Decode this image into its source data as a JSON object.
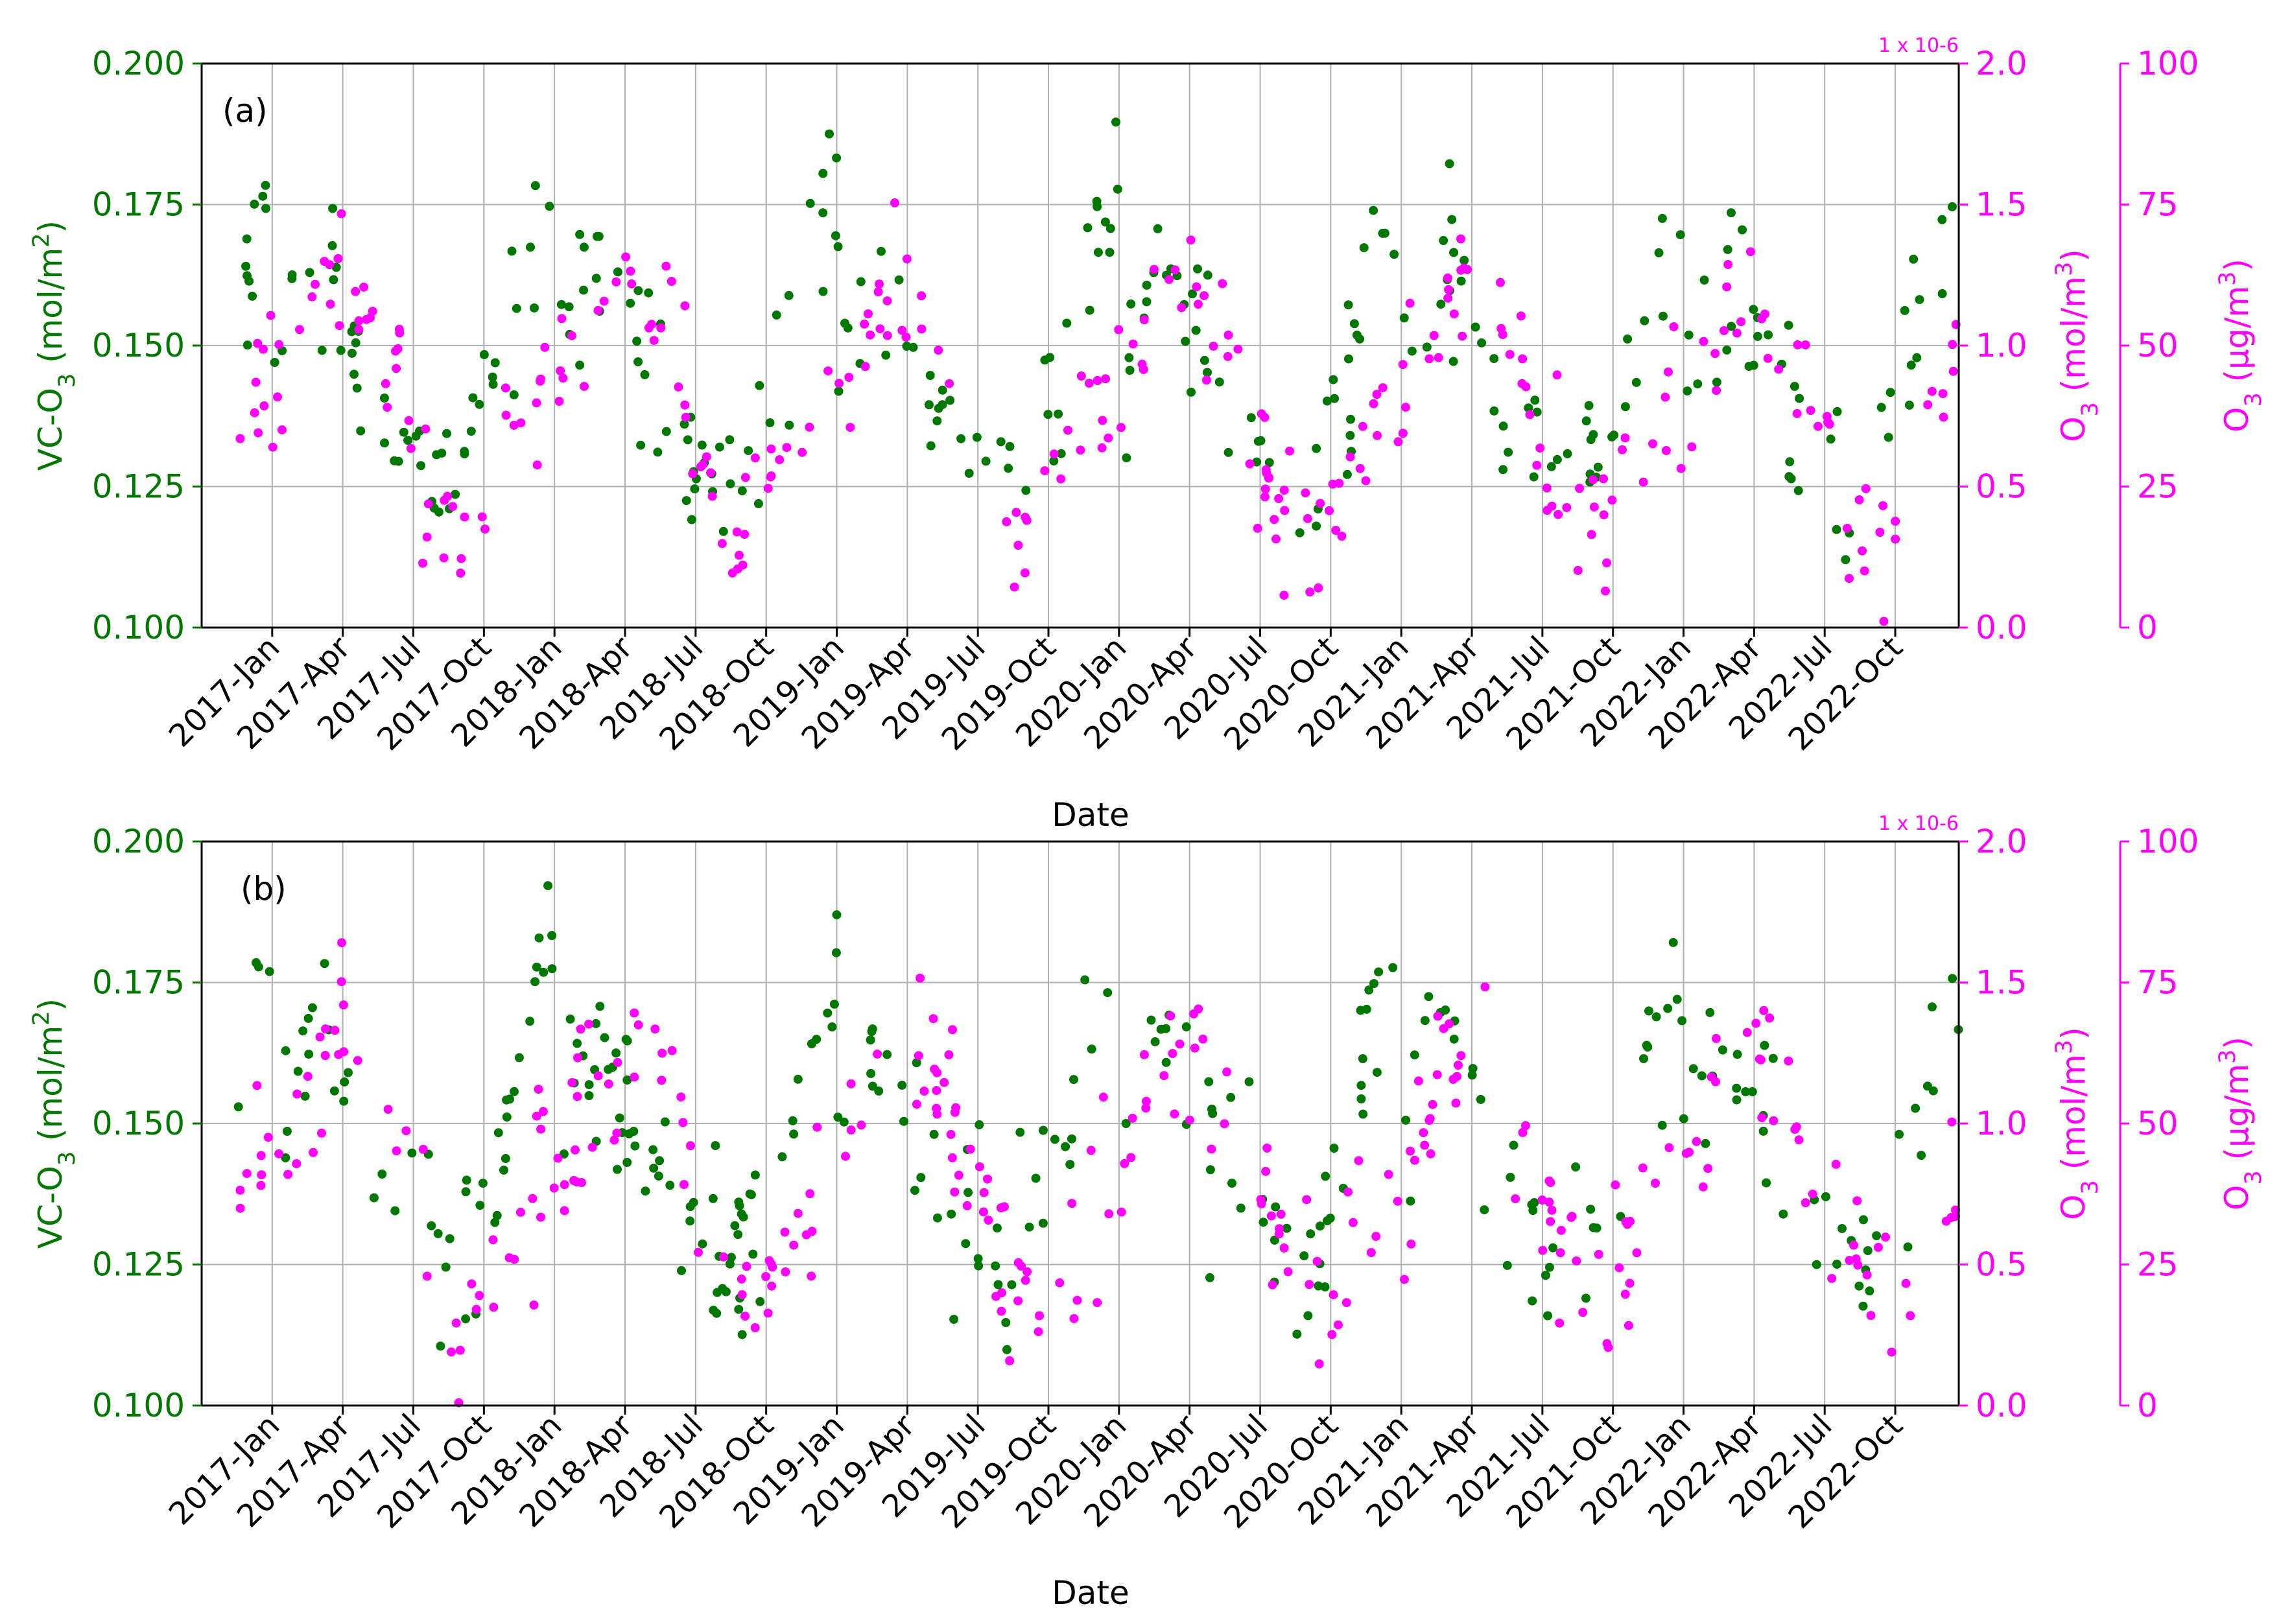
{
  "colors": {
    "green": "#007800",
    "magenta": "#ff00ff",
    "grid": "#b0b0b0",
    "axis": "#000000"
  },
  "chart_data": [
    {
      "type": "scatter",
      "panel_label": "(a)",
      "xlabel": "Date",
      "x_ticks": [
        "2017-Jan",
        "2017-Apr",
        "2017-Jul",
        "2017-Oct",
        "2018-Jan",
        "2018-Apr",
        "2018-Jul",
        "2018-Oct",
        "2019-Jan",
        "2019-Apr",
        "2019-Jul",
        "2019-Oct",
        "2020-Jan",
        "2020-Apr",
        "2020-Jul",
        "2020-Oct",
        "2021-Jan",
        "2021-Apr",
        "2021-Jul",
        "2021-Oct",
        "2022-Jan",
        "2022-Apr",
        "2022-Jul",
        "2022-Oct"
      ],
      "x_range_months": [
        -1.0,
        23.9
      ],
      "ylabel_left": "VC-O3 (mol/m2)",
      "ylim_left": [
        0.1,
        0.2
      ],
      "yticks_left": [
        "0.100",
        "0.125",
        "0.150",
        "0.175",
        "0.200"
      ],
      "ylabel_right1": "O3 (mol/m3)",
      "ylim_right1": [
        0.0,
        2.0
      ],
      "yticks_right1": [
        "0.0",
        "0.5",
        "1.0",
        "1.5",
        "2.0"
      ],
      "right1_multiplier": "1 x 10-6",
      "ylabel_right2": "O3 (µg/m3)",
      "ylim_right2": [
        0,
        100
      ],
      "yticks_right2": [
        "0",
        "25",
        "50",
        "75",
        "100"
      ],
      "series": [
        {
          "name": "VC-O3 (mol/m2)",
          "axis": "left",
          "color": "green",
          "profile_months": [
            0,
            1,
            2,
            3,
            4,
            5,
            6,
            7,
            8,
            9,
            10,
            11,
            12
          ],
          "profile_values": [
            0.147,
            0.158,
            0.165,
            0.155,
            0.142,
            0.135,
            0.13,
            0.127,
            0.129,
            0.138,
            0.15,
            0.17,
            0.176
          ],
          "n_points": 300,
          "noise": 0.008
        },
        {
          "name": "O3 (µg/m3)",
          "axis": "right2",
          "color": "magenta",
          "profile_months": [
            0,
            1,
            2,
            3,
            4,
            5,
            6,
            7,
            8,
            9,
            10,
            11,
            12
          ],
          "profile_values": [
            35,
            48,
            58,
            60,
            55,
            48,
            32,
            20,
            16,
            22,
            30,
            40,
            42
          ],
          "n_points": 300,
          "noise": 7
        }
      ]
    },
    {
      "type": "scatter",
      "panel_label": "(b)",
      "xlabel": "Date",
      "x_ticks": [
        "2017-Jan",
        "2017-Apr",
        "2017-Jul",
        "2017-Oct",
        "2018-Jan",
        "2018-Apr",
        "2018-Jul",
        "2018-Oct",
        "2019-Jan",
        "2019-Apr",
        "2019-Jul",
        "2019-Oct",
        "2020-Jan",
        "2020-Apr",
        "2020-Jul",
        "2020-Oct",
        "2021-Jan",
        "2021-Apr",
        "2021-Jul",
        "2021-Oct",
        "2022-Jan",
        "2022-Apr",
        "2022-Jul",
        "2022-Oct"
      ],
      "x_range_months": [
        -1.0,
        23.9
      ],
      "ylabel_left": "VC-O3 (mol/m2)",
      "ylim_left": [
        0.1,
        0.2
      ],
      "yticks_left": [
        "0.100",
        "0.125",
        "0.150",
        "0.175",
        "0.200"
      ],
      "ylabel_right1": "O3 (mol/m3)",
      "ylim_right1": [
        0.0,
        2.0
      ],
      "yticks_right1": [
        "0.0",
        "0.5",
        "1.0",
        "1.5",
        "2.0"
      ],
      "right1_multiplier": "1 x 10-6",
      "ylabel_right2": "O3 (µg/m3)",
      "ylim_right2": [
        0,
        100
      ],
      "yticks_right2": [
        "0",
        "25",
        "50",
        "75",
        "100"
      ],
      "series": [
        {
          "name": "VC-O3 (mol/m2)",
          "axis": "left",
          "color": "green",
          "profile_months": [
            0,
            1,
            2,
            3,
            4,
            5,
            6,
            7,
            8,
            9,
            10,
            11,
            12
          ],
          "profile_values": [
            0.15,
            0.16,
            0.168,
            0.155,
            0.142,
            0.135,
            0.13,
            0.125,
            0.128,
            0.135,
            0.15,
            0.172,
            0.18
          ],
          "n_points": 300,
          "noise": 0.008
        },
        {
          "name": "O3 (µg/m3)",
          "axis": "right2",
          "color": "magenta",
          "profile_months": [
            0,
            1,
            2,
            3,
            4,
            5,
            6,
            7,
            8,
            9,
            10,
            11,
            12
          ],
          "profile_values": [
            38,
            52,
            62,
            64,
            58,
            50,
            38,
            25,
            18,
            20,
            28,
            40,
            45
          ],
          "n_points": 300,
          "noise": 8
        }
      ]
    }
  ]
}
